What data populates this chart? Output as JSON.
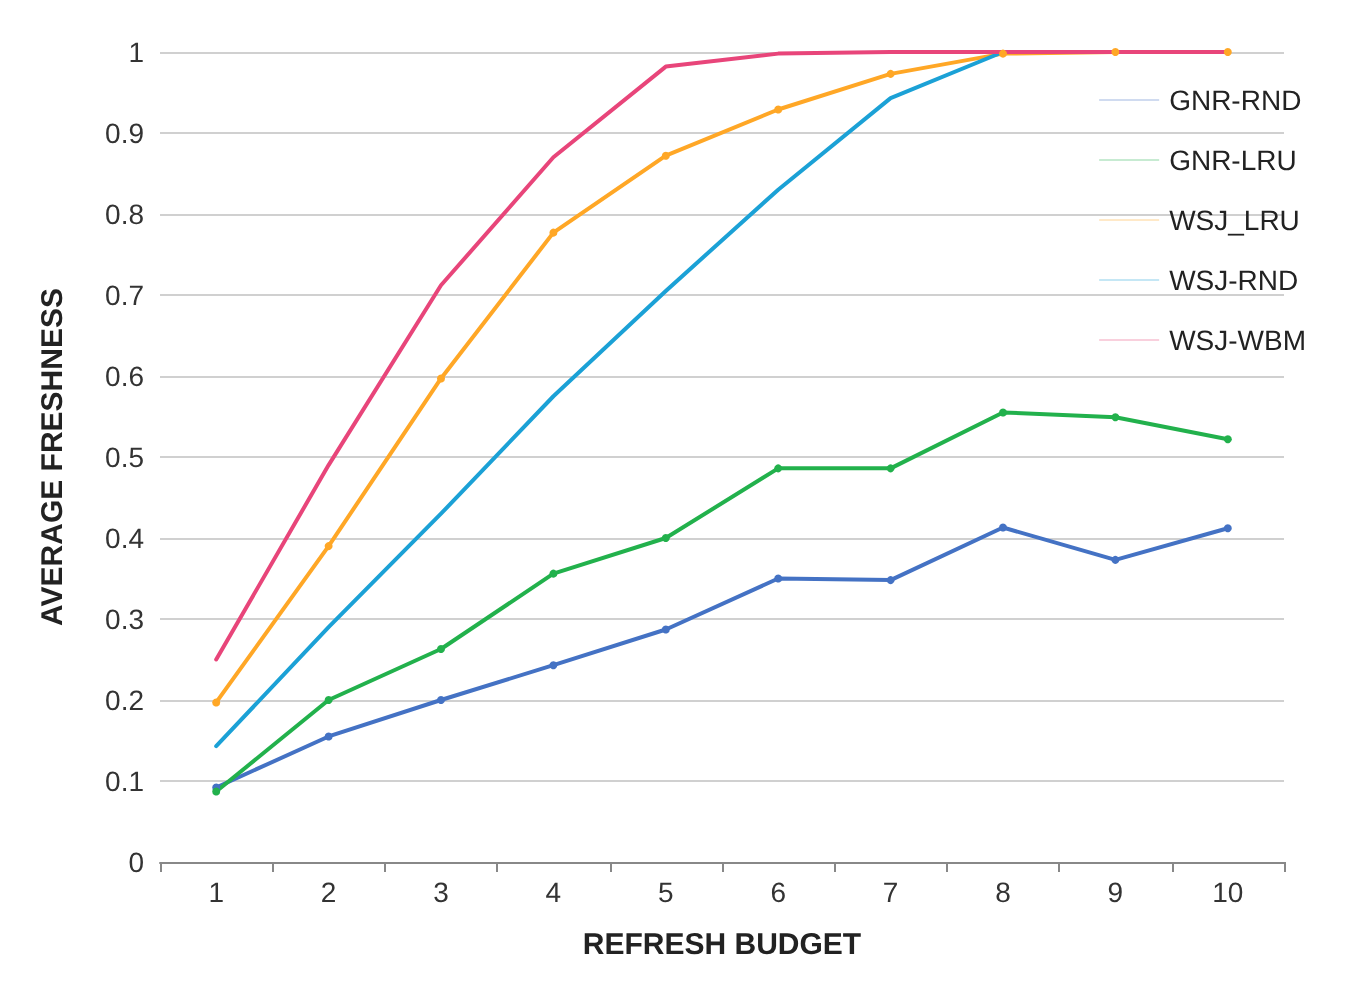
{
  "chart_data": {
    "type": "line",
    "xlabel": "REFRESH BUDGET",
    "ylabel": "AVERAGE FRESHNESS",
    "categories": [
      "1",
      "2",
      "3",
      "4",
      "5",
      "6",
      "7",
      "8",
      "9",
      "10"
    ],
    "series": [
      {
        "name": "GNR-RND",
        "color": "#4472c4",
        "marker": "circle",
        "values": [
          0.092,
          0.155,
          0.2,
          0.243,
          0.287,
          0.35,
          0.348,
          0.413,
          0.373,
          0.412
        ]
      },
      {
        "name": "GNR-LRU",
        "color": "#22b14c",
        "marker": "circle",
        "values": [
          0.087,
          0.2,
          0.263,
          0.356,
          0.4,
          0.486,
          0.486,
          0.555,
          0.549,
          0.522
        ]
      },
      {
        "name": "WSJ_LRU",
        "color": "#ffa726",
        "marker": "circle",
        "values": [
          0.197,
          0.39,
          0.597,
          0.777,
          0.872,
          0.929,
          0.973,
          0.998,
          1,
          1
        ]
      },
      {
        "name": "WSJ-RND",
        "color": "#1ba1d6",
        "marker": "none",
        "values": [
          0.143,
          0.29,
          0.43,
          0.575,
          0.705,
          0.83,
          0.943,
          1,
          null,
          null
        ]
      },
      {
        "name": "WSJ-WBM",
        "color": "#e8457a",
        "marker": "none",
        "values": [
          0.25,
          0.49,
          0.712,
          0.87,
          0.982,
          0.998,
          1,
          1,
          1,
          1
        ]
      }
    ],
    "ylim": [
      0,
      1
    ],
    "yticks": [
      0,
      0.1,
      0.2,
      0.3,
      0.4,
      0.5,
      0.6,
      0.7,
      0.8,
      0.9,
      1
    ],
    "grid": "y",
    "legend": "right",
    "line_style": "solid"
  }
}
